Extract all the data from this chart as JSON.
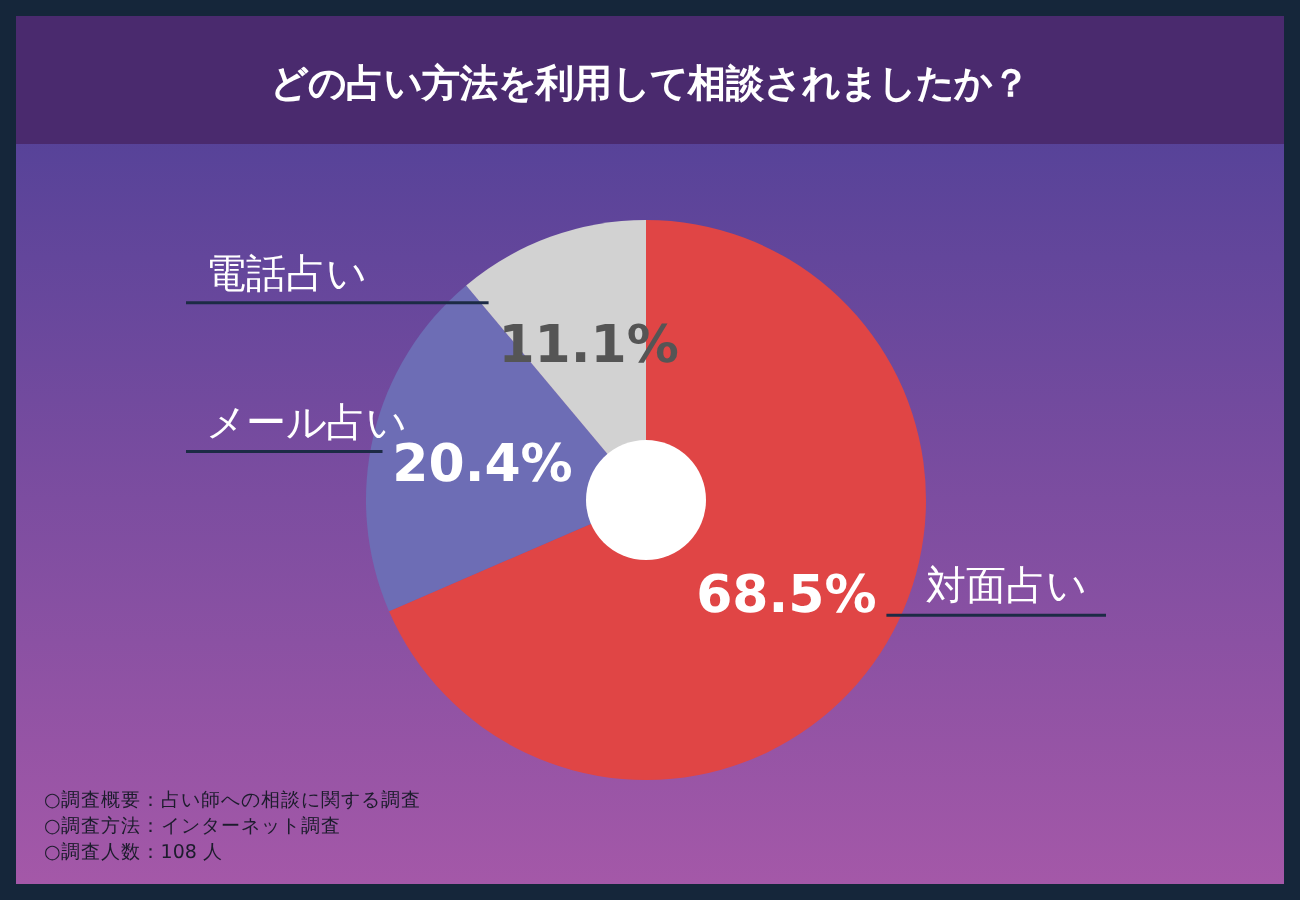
{
  "chart_data": {
    "type": "donut",
    "title": "どの占い方法を利用して相談されましたか？",
    "categories": [
      "対面占い",
      "メール占い",
      "電話占い"
    ],
    "values": [
      68.5,
      20.4,
      11.1
    ],
    "colors": [
      "#e04545",
      "#6d6db5",
      "#d2d2d2"
    ],
    "value_labels": [
      "68.5%",
      "20.4%",
      "11.1%"
    ],
    "annotations": [
      "○調査概要：占い師への相談に関する調査",
      "○調査方法：インターネット調査",
      "○調査人数：108 人"
    ]
  }
}
